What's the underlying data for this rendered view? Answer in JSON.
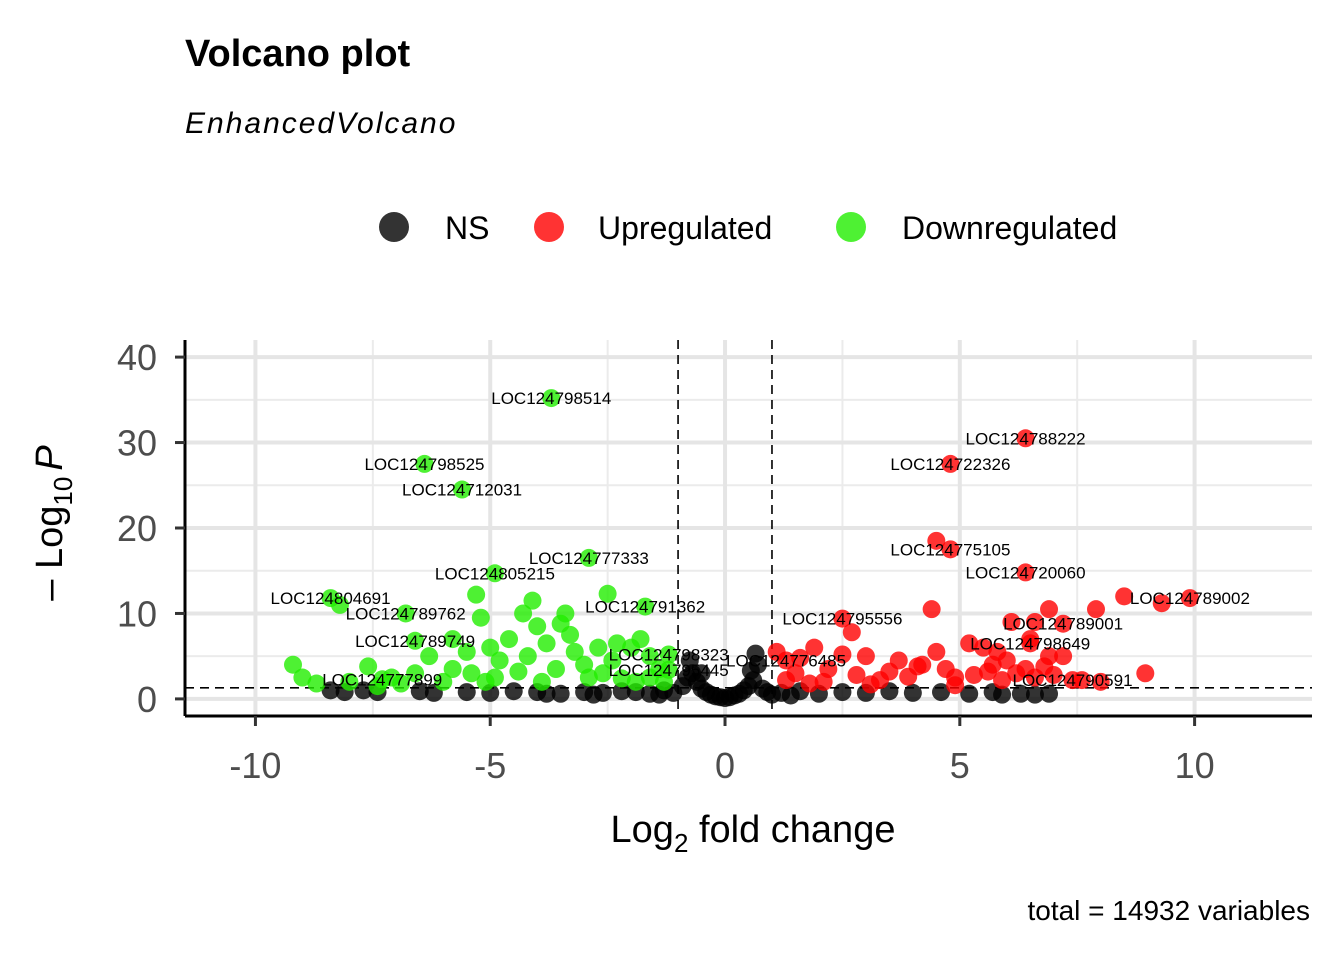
{
  "chart_data": {
    "type": "scatter",
    "title": "Volcano plot",
    "subtitle": "EnhancedVolcano",
    "xlabel_base": "Log",
    "xlabel_sub": "2",
    "xlabel_rest": " fold change",
    "ylabel_prefix": "– Log",
    "ylabel_sub": "10",
    "ylabel_var": "P",
    "caption": "total = 14932 variables",
    "xlim": [
      -11.5,
      12.5
    ],
    "ylim": [
      -2,
      42
    ],
    "x_ticks": [
      -10,
      -5,
      0,
      5,
      10
    ],
    "x_tick_labels": [
      "-10",
      "-5",
      "0",
      "5",
      "10"
    ],
    "y_ticks": [
      0,
      10,
      20,
      30,
      40
    ],
    "y_tick_labels": [
      "0",
      "10",
      "20",
      "30",
      "40"
    ],
    "fc_cutoff": 1,
    "p_cutoff_line_y": 1.3,
    "legend": [
      {
        "name": "NS",
        "color": "#000000"
      },
      {
        "name": "Upregulated",
        "color": "#ff0000"
      },
      {
        "name": "Downregulated",
        "color": "#22ee00"
      }
    ],
    "labeled_points": [
      {
        "gene": "LOC124798514",
        "x": -3.7,
        "y": 35.2,
        "group": "Downregulated"
      },
      {
        "gene": "LOC124798525",
        "x": -6.4,
        "y": 27.5,
        "group": "Downregulated"
      },
      {
        "gene": "LOC124712031",
        "x": -5.6,
        "y": 24.5,
        "group": "Downregulated"
      },
      {
        "gene": "LOC124777333",
        "x": -2.9,
        "y": 16.5,
        "group": "Downregulated"
      },
      {
        "gene": "LOC124805215",
        "x": -4.9,
        "y": 14.7,
        "group": "Downregulated"
      },
      {
        "gene": "LOC124804691",
        "x": -8.4,
        "y": 11.8,
        "group": "Downregulated"
      },
      {
        "gene": "LOC124789762",
        "x": -6.8,
        "y": 10.0,
        "group": "Downregulated"
      },
      {
        "gene": "LOC124791362",
        "x": -1.7,
        "y": 10.8,
        "group": "Downregulated"
      },
      {
        "gene": "LOC124789749",
        "x": -6.6,
        "y": 6.8,
        "group": "Downregulated"
      },
      {
        "gene": "LOC124798323",
        "x": -1.2,
        "y": 5.2,
        "group": "Downregulated"
      },
      {
        "gene": "LOC124795445",
        "x": -1.2,
        "y": 3.4,
        "group": "Downregulated"
      },
      {
        "gene": "LOC124777899",
        "x": -7.3,
        "y": 2.3,
        "group": "Downregulated"
      },
      {
        "gene": "LOC124788222",
        "x": 6.4,
        "y": 30.5,
        "group": "Upregulated"
      },
      {
        "gene": "LOC124722326",
        "x": 4.8,
        "y": 27.5,
        "group": "Upregulated"
      },
      {
        "gene": "LOC124775105",
        "x": 4.8,
        "y": 17.5,
        "group": "Upregulated"
      },
      {
        "gene": "LOC124720060",
        "x": 6.4,
        "y": 14.8,
        "group": "Upregulated"
      },
      {
        "gene": "LOC124789002",
        "x": 9.9,
        "y": 11.8,
        "group": "Upregulated"
      },
      {
        "gene": "LOC124789001",
        "x": 7.2,
        "y": 8.8,
        "group": "Upregulated"
      },
      {
        "gene": "LOC124795556",
        "x": 2.5,
        "y": 9.4,
        "group": "Upregulated"
      },
      {
        "gene": "LOC124798649",
        "x": 6.5,
        "y": 6.5,
        "group": "Upregulated"
      },
      {
        "gene": "LOC124776485",
        "x": 1.3,
        "y": 4.5,
        "group": "Upregulated"
      },
      {
        "gene": "LOC124790591",
        "x": 7.4,
        "y": 2.2,
        "group": "Upregulated"
      }
    ],
    "up_points": [
      [
        4.5,
        18.5
      ],
      [
        6.6,
        9.0
      ],
      [
        6.9,
        10.5
      ],
      [
        7.9,
        10.5
      ],
      [
        8.5,
        12.0
      ],
      [
        9.3,
        11.2
      ],
      [
        4.4,
        10.5
      ],
      [
        2.7,
        7.8
      ],
      [
        5.2,
        6.5
      ],
      [
        4.5,
        5.5
      ],
      [
        4.2,
        4.0
      ],
      [
        6.1,
        9.0
      ],
      [
        6.5,
        7.0
      ],
      [
        5.8,
        5.5
      ],
      [
        6.9,
        5.0
      ],
      [
        7.2,
        5.0
      ],
      [
        6.0,
        4.5
      ],
      [
        6.4,
        3.5
      ],
      [
        6.8,
        3.8
      ],
      [
        7.6,
        2.2
      ],
      [
        8.0,
        2.0
      ],
      [
        8.95,
        3.0
      ],
      [
        5.6,
        3.2
      ],
      [
        5.3,
        2.8
      ],
      [
        5.7,
        4.0
      ],
      [
        4.9,
        2.5
      ],
      [
        3.0,
        5.0
      ],
      [
        2.2,
        3.5
      ],
      [
        1.9,
        6.0
      ],
      [
        1.1,
        5.5
      ],
      [
        1.5,
        3.0
      ],
      [
        2.8,
        2.8
      ],
      [
        3.5,
        3.2
      ],
      [
        3.9,
        2.6
      ],
      [
        4.1,
        3.8
      ],
      [
        4.7,
        3.5
      ],
      [
        3.3,
        2.2
      ],
      [
        3.7,
        4.5
      ],
      [
        2.5,
        5.2
      ],
      [
        1.6,
        4.8
      ],
      [
        5.5,
        6.0
      ],
      [
        6.2,
        3.0
      ],
      [
        6.6,
        2.5
      ],
      [
        7.0,
        2.8
      ],
      [
        4.9,
        1.6
      ],
      [
        2.1,
        2.0
      ],
      [
        1.3,
        2.2
      ],
      [
        1.8,
        1.8
      ],
      [
        3.1,
        1.7
      ],
      [
        5.9,
        2.2
      ]
    ],
    "down_points": [
      [
        -9.2,
        4.0
      ],
      [
        -9.0,
        2.5
      ],
      [
        -8.7,
        1.8
      ],
      [
        -8.2,
        11.0
      ],
      [
        -7.6,
        3.8
      ],
      [
        -7.1,
        2.5
      ],
      [
        -6.6,
        3.0
      ],
      [
        -6.3,
        5.0
      ],
      [
        -5.8,
        7.0
      ],
      [
        -5.5,
        5.5
      ],
      [
        -5.3,
        12.2
      ],
      [
        -5.2,
        9.5
      ],
      [
        -5.0,
        6.0
      ],
      [
        -4.8,
        4.5
      ],
      [
        -4.6,
        7.0
      ],
      [
        -4.3,
        10.0
      ],
      [
        -4.1,
        11.5
      ],
      [
        -4.0,
        8.5
      ],
      [
        -3.8,
        6.5
      ],
      [
        -3.5,
        8.8
      ],
      [
        -3.4,
        10.0
      ],
      [
        -3.2,
        5.5
      ],
      [
        -3.0,
        4.0
      ],
      [
        -2.7,
        6.0
      ],
      [
        -2.5,
        12.3
      ],
      [
        -2.3,
        6.5
      ],
      [
        -2.0,
        6.0
      ],
      [
        -1.8,
        7.0
      ],
      [
        -1.6,
        5.0
      ],
      [
        -1.4,
        3.5
      ],
      [
        -5.8,
        3.5
      ],
      [
        -6.0,
        2.0
      ],
      [
        -5.4,
        3.0
      ],
      [
        -4.9,
        2.5
      ],
      [
        -4.4,
        3.2
      ],
      [
        -3.9,
        2.0
      ],
      [
        -3.6,
        3.5
      ],
      [
        -2.9,
        2.5
      ],
      [
        -2.6,
        3.0
      ],
      [
        -2.2,
        2.4
      ],
      [
        -1.9,
        2.0
      ],
      [
        -1.6,
        2.5
      ],
      [
        -6.9,
        1.8
      ],
      [
        -8.0,
        2.0
      ],
      [
        -7.4,
        1.5
      ],
      [
        -5.1,
        2.0
      ],
      [
        -4.2,
        5.0
      ],
      [
        -3.3,
        7.5
      ],
      [
        -2.4,
        4.5
      ],
      [
        -1.3,
        2.0
      ]
    ],
    "ns_points": [
      [
        -8.4,
        1.0
      ],
      [
        -8.1,
        0.8
      ],
      [
        -7.7,
        1.0
      ],
      [
        -7.4,
        0.8
      ],
      [
        -6.5,
        0.9
      ],
      [
        -6.2,
        0.7
      ],
      [
        -5.5,
        0.8
      ],
      [
        -5.0,
        0.7
      ],
      [
        -4.5,
        0.9
      ],
      [
        -4.0,
        0.8
      ],
      [
        -3.5,
        0.6
      ],
      [
        -3.0,
        0.8
      ],
      [
        -2.6,
        0.7
      ],
      [
        -2.2,
        0.9
      ],
      [
        -1.9,
        0.8
      ],
      [
        -1.6,
        0.6
      ],
      [
        -1.3,
        1.0
      ],
      [
        -1.1,
        0.7
      ],
      [
        -0.9,
        1.5
      ],
      [
        -0.8,
        2.5
      ],
      [
        -0.7,
        3.0
      ],
      [
        -0.6,
        2.0
      ],
      [
        -0.5,
        1.2
      ],
      [
        -0.4,
        0.8
      ],
      [
        -0.3,
        0.5
      ],
      [
        -0.2,
        0.3
      ],
      [
        -0.1,
        0.2
      ],
      [
        0.0,
        0.1
      ],
      [
        0.1,
        0.2
      ],
      [
        0.2,
        0.4
      ],
      [
        0.3,
        0.6
      ],
      [
        0.4,
        1.0
      ],
      [
        0.5,
        1.5
      ],
      [
        0.6,
        2.2
      ],
      [
        0.7,
        4.0
      ],
      [
        0.65,
        5.3
      ],
      [
        0.8,
        1.2
      ],
      [
        0.9,
        0.8
      ],
      [
        1.2,
        0.7
      ],
      [
        1.6,
        0.9
      ],
      [
        2.0,
        0.6
      ],
      [
        2.5,
        0.8
      ],
      [
        3.0,
        0.7
      ],
      [
        3.5,
        0.9
      ],
      [
        4.0,
        0.7
      ],
      [
        4.6,
        0.8
      ],
      [
        5.2,
        0.6
      ],
      [
        5.7,
        0.8
      ],
      [
        5.9,
        0.5
      ],
      [
        6.3,
        0.6
      ],
      [
        6.6,
        0.5
      ],
      [
        6.9,
        0.6
      ],
      [
        -0.75,
        4.5
      ],
      [
        -0.5,
        3.0
      ],
      [
        0.55,
        3.3
      ],
      [
        -2.8,
        0.5
      ],
      [
        -3.8,
        0.6
      ],
      [
        1.0,
        0.5
      ],
      [
        1.4,
        0.4
      ],
      [
        -1.4,
        0.5
      ]
    ]
  }
}
